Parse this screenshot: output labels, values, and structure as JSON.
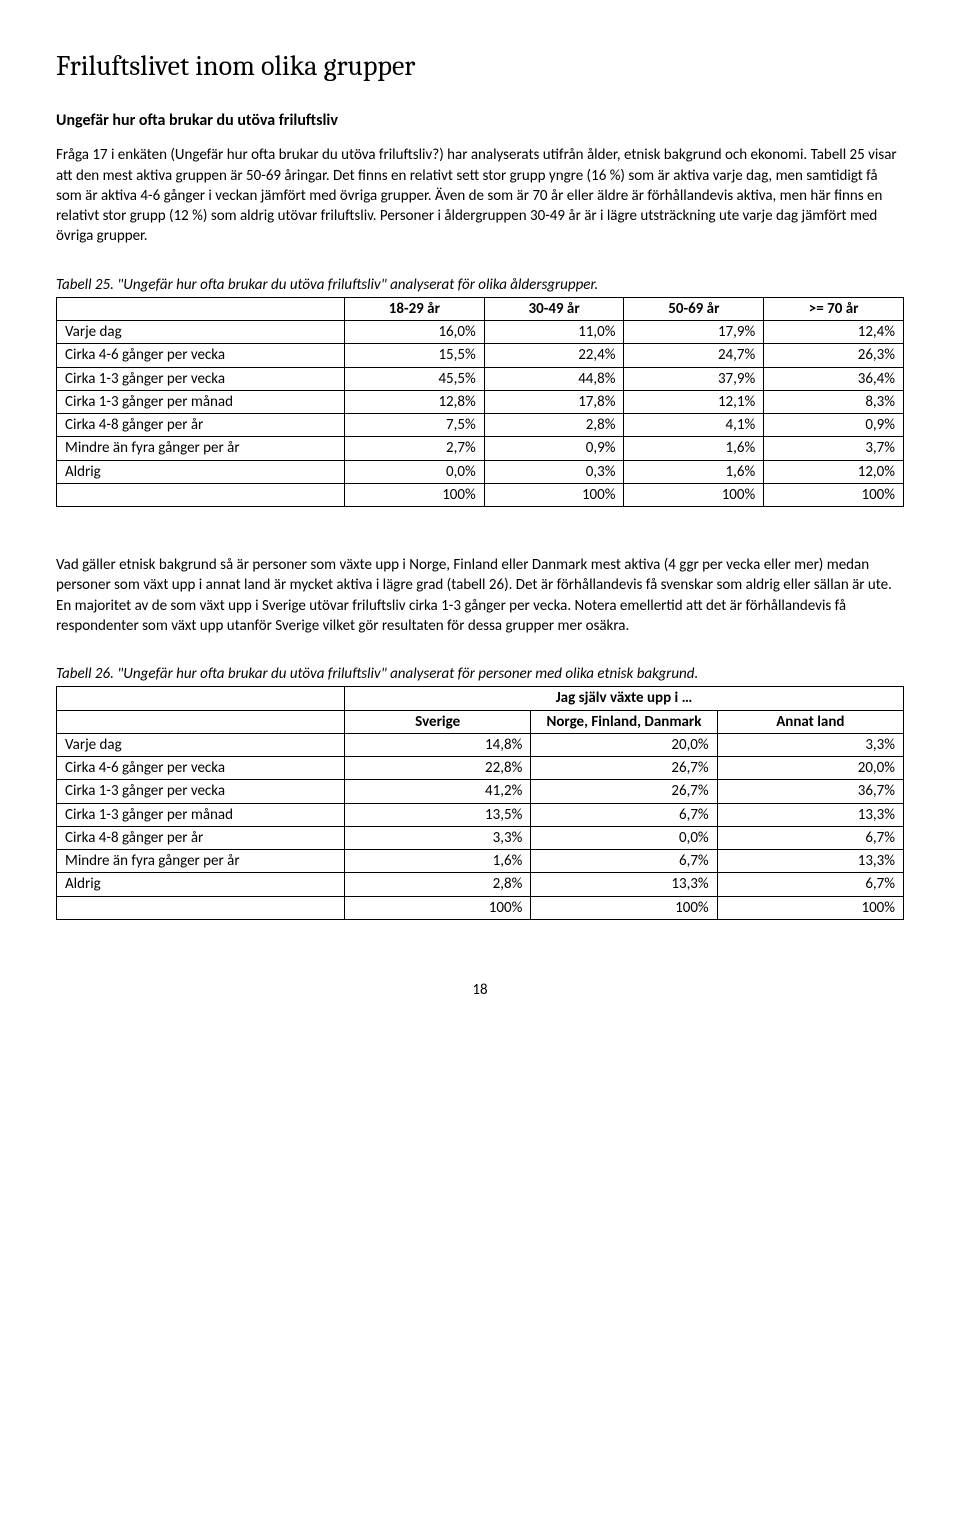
{
  "heading1": "Friluftslivet inom olika grupper",
  "heading2": "Ungefär hur ofta brukar du utöva friluftsliv",
  "para1": "Fråga 17 i enkäten (Ungefär hur ofta brukar du utöva friluftsliv?) har analyserats utifrån ålder, etnisk bakgrund och ekonomi. Tabell 25 visar att den mest aktiva gruppen är 50-69 åringar. Det finns en relativt sett stor grupp yngre (16 %) som är aktiva varje dag, men samtidigt få som är aktiva 4-6 gånger i veckan jämfört med övriga grupper. Även de som är 70 år eller äldre är förhållandevis aktiva, men här finns en relativt stor grupp (12 %) som aldrig utövar friluftsliv. Personer i åldergruppen 30-49 år är i lägre utsträckning ute varje dag jämfört med övriga grupper.",
  "table25": {
    "caption": "Tabell 25. \"Ungefär hur ofta brukar du utöva friluftsliv\" analyserat för olika åldersgrupper.",
    "columns": [
      "",
      "18-29 år",
      "30-49 år",
      "50-69 år",
      ">= 70 år"
    ],
    "rows": [
      [
        "Varje dag",
        "16,0%",
        "11,0%",
        "17,9%",
        "12,4%"
      ],
      [
        "Cirka 4-6 gånger per vecka",
        "15,5%",
        "22,4%",
        "24,7%",
        "26,3%"
      ],
      [
        "Cirka 1-3 gånger per vecka",
        "45,5%",
        "44,8%",
        "37,9%",
        "36,4%"
      ],
      [
        "Cirka 1-3 gånger per månad",
        "12,8%",
        "17,8%",
        "12,1%",
        "8,3%"
      ],
      [
        "Cirka 4-8 gånger per år",
        "7,5%",
        "2,8%",
        "4,1%",
        "0,9%"
      ],
      [
        "Mindre än fyra gånger per år",
        "2,7%",
        "0,9%",
        "1,6%",
        "3,7%"
      ],
      [
        "Aldrig",
        "0,0%",
        "0,3%",
        "1,6%",
        "12,0%"
      ],
      [
        "",
        "100%",
        "100%",
        "100%",
        "100%"
      ]
    ],
    "col_widths": [
      "34%",
      "16.5%",
      "16.5%",
      "16.5%",
      "16.5%"
    ]
  },
  "para2": "Vad gäller etnisk bakgrund så är personer som växte upp i Norge, Finland eller Danmark mest aktiva (4 ggr per vecka eller mer) medan personer som växt upp i annat land är mycket aktiva i lägre grad (tabell 26). Det är förhållandevis få svenskar som aldrig eller sällan är ute. En majoritet av de som växt upp i Sverige utövar friluftsliv cirka 1-3 gånger per vecka. Notera emellertid att det är förhållandevis få respondenter som växt upp utanför Sverige vilket gör resultaten för dessa grupper mer osäkra.",
  "table26": {
    "caption": "Tabell 26. \"Ungefär hur ofta brukar du utöva friluftsliv\" analyserat för personer med olika etnisk bakgrund.",
    "super_header": "Jag själv växte upp i …",
    "columns": [
      "",
      "Sverige",
      "Norge, Finland, Danmark",
      "Annat land"
    ],
    "rows": [
      [
        "Varje dag",
        "14,8%",
        "20,0%",
        "3,3%"
      ],
      [
        "Cirka 4-6 gånger per vecka",
        "22,8%",
        "26,7%",
        "20,0%"
      ],
      [
        "Cirka 1-3 gånger per vecka",
        "41,2%",
        "26,7%",
        "36,7%"
      ],
      [
        "Cirka 1-3 gånger per månad",
        "13,5%",
        "6,7%",
        "13,3%"
      ],
      [
        "Cirka 4-8 gånger per år",
        "3,3%",
        "0,0%",
        "6,7%"
      ],
      [
        "Mindre än fyra gånger per år",
        "1,6%",
        "6,7%",
        "13,3%"
      ],
      [
        "Aldrig",
        "2,8%",
        "13,3%",
        "6,7%"
      ],
      [
        "",
        "100%",
        "100%",
        "100%"
      ]
    ],
    "col_widths": [
      "34%",
      "22%",
      "22%",
      "22%"
    ]
  },
  "page_number": "18"
}
